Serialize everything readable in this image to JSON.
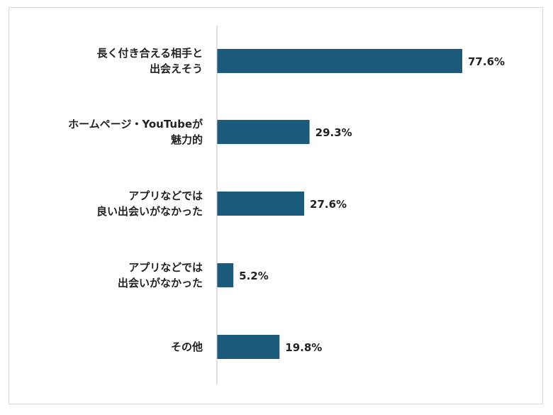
{
  "chart_data": {
    "type": "bar",
    "orientation": "horizontal",
    "categories": [
      [
        "長く付き合える相手と",
        "出会えそう"
      ],
      [
        "ホームページ・YouTubeが",
        "魅力的"
      ],
      [
        "アプリなどでは",
        "良い出会いがなかった"
      ],
      [
        "アプリなどでは",
        "出会いがなかった"
      ],
      [
        "その他"
      ]
    ],
    "values": [
      77.6,
      29.3,
      27.6,
      5.2,
      19.8
    ],
    "value_labels": [
      "77.6%",
      "29.3%",
      "27.6%",
      "5.2%",
      "19.8%"
    ],
    "unit": "%",
    "xlim": [
      0,
      100
    ],
    "grid": false,
    "legend": "none",
    "title": "",
    "xlabel": "",
    "ylabel": "",
    "bar_color": "#1b5a7a",
    "axis_color": "#bfbfbf"
  }
}
